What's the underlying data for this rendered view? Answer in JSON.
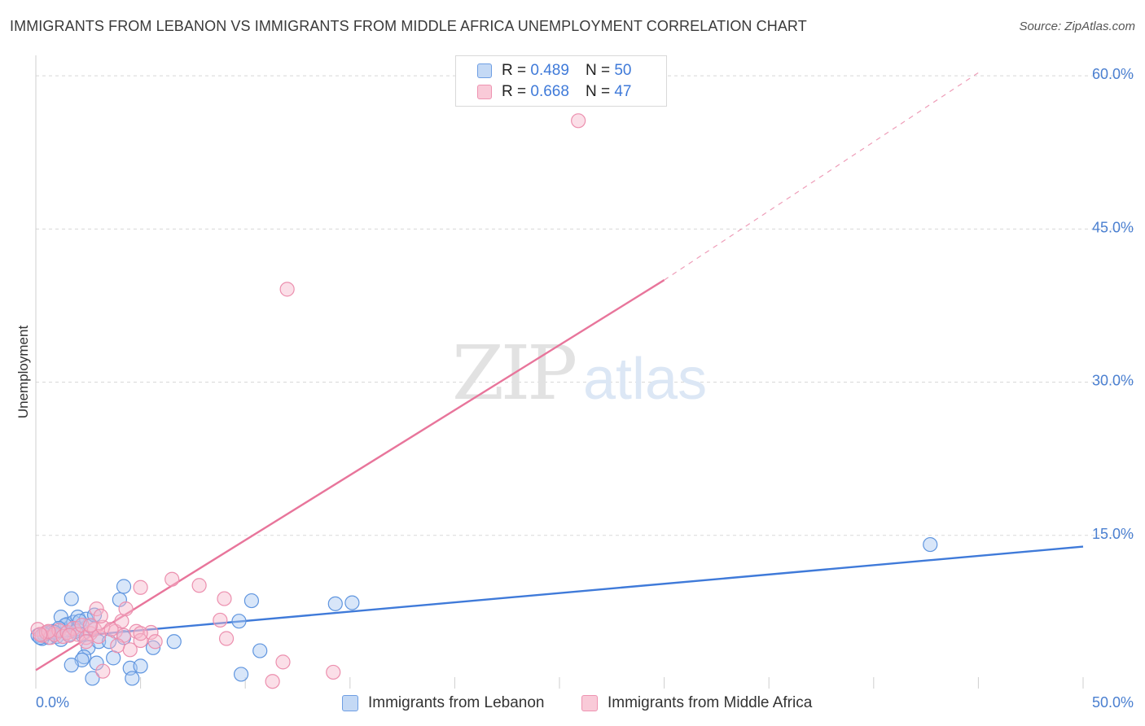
{
  "title": "IMMIGRANTS FROM LEBANON VS IMMIGRANTS FROM MIDDLE AFRICA UNEMPLOYMENT CORRELATION CHART",
  "source": "Source: ZipAtlas.com",
  "watermark": {
    "zip": "ZIP",
    "atlas": "atlas"
  },
  "legend": {
    "r_label": "R =",
    "n_label": "N =",
    "series": [
      {
        "r": "0.489",
        "n": "50"
      },
      {
        "r": "0.668",
        "n": "47"
      }
    ]
  },
  "colors": {
    "blue": "#3f7ad9",
    "blue_fill": "#a9c8f1",
    "pink": "#e8759b",
    "pink_fill": "#f7b9cc",
    "grid": "#d8d8d8"
  },
  "chart_data": {
    "type": "scatter",
    "title": "IMMIGRANTS FROM LEBANON VS IMMIGRANTS FROM MIDDLE AFRICA UNEMPLOYMENT CORRELATION CHART",
    "xlabel": "",
    "ylabel": "Unemployment",
    "xlim": [
      0,
      50
    ],
    "ylim": [
      0,
      62
    ],
    "x_ticks": [
      "0.0%",
      "50.0%"
    ],
    "y_ticks": [
      {
        "value": 15,
        "label": "15.0%"
      },
      {
        "value": 30,
        "label": "30.0%"
      },
      {
        "value": 45,
        "label": "45.0%"
      },
      {
        "value": 60,
        "label": "60.0%"
      }
    ],
    "series": [
      {
        "name": "Immigrants from Lebanon",
        "color": "#3f7ad9",
        "r": 0.489,
        "n": 50,
        "trend": {
          "x0": 0,
          "y0": 4.8,
          "x1": 50,
          "y1": 13.9
        },
        "points": [
          [
            0.1,
            5.2
          ],
          [
            0.3,
            4.9
          ],
          [
            0.5,
            5.4
          ],
          [
            0.6,
            5.0
          ],
          [
            0.8,
            5.6
          ],
          [
            1.0,
            5.1
          ],
          [
            1.2,
            4.8
          ],
          [
            1.3,
            5.7
          ],
          [
            1.5,
            6.3
          ],
          [
            1.6,
            5.3
          ],
          [
            1.8,
            6.5
          ],
          [
            2.0,
            7.0
          ],
          [
            2.0,
            5.9
          ],
          [
            2.2,
            5.3
          ],
          [
            2.4,
            6.8
          ],
          [
            2.6,
            6.1
          ],
          [
            1.2,
            7.0
          ],
          [
            1.4,
            6.2
          ],
          [
            1.7,
            8.8
          ],
          [
            1.1,
            5.9
          ],
          [
            0.9,
            5.5
          ],
          [
            0.4,
            5.3
          ],
          [
            1.9,
            5.6
          ],
          [
            2.1,
            6.6
          ],
          [
            2.5,
            4.0
          ],
          [
            2.3,
            3.1
          ],
          [
            2.2,
            2.8
          ],
          [
            1.7,
            2.3
          ],
          [
            2.9,
            2.5
          ],
          [
            4.2,
            5.0
          ],
          [
            3.0,
            4.6
          ],
          [
            3.7,
            3.0
          ],
          [
            4.0,
            8.7
          ],
          [
            4.2,
            10.0
          ],
          [
            4.5,
            2.0
          ],
          [
            4.6,
            1.0
          ],
          [
            5.0,
            2.2
          ],
          [
            5.6,
            4.0
          ],
          [
            6.6,
            4.6
          ],
          [
            2.8,
            7.2
          ],
          [
            3.5,
            4.6
          ],
          [
            9.7,
            6.6
          ],
          [
            10.3,
            8.6
          ],
          [
            10.7,
            3.7
          ],
          [
            9.8,
            1.4
          ],
          [
            14.3,
            8.3
          ],
          [
            15.1,
            8.4
          ],
          [
            42.7,
            14.1
          ],
          [
            0.2,
            5.0
          ],
          [
            2.7,
            1.0
          ]
        ]
      },
      {
        "name": "Immigrants from Middle Africa",
        "color": "#e8759b",
        "r": 0.668,
        "n": 47,
        "trend": {
          "x0": 0,
          "y0": 1.8,
          "x1": 30,
          "y1": 40.0,
          "dash_x1": 45,
          "dash_y1": 60.3
        },
        "points": [
          [
            0.1,
            5.8
          ],
          [
            0.3,
            5.2
          ],
          [
            0.5,
            5.5
          ],
          [
            0.7,
            5.0
          ],
          [
            0.9,
            5.3
          ],
          [
            1.1,
            5.7
          ],
          [
            1.3,
            5.1
          ],
          [
            1.5,
            5.5
          ],
          [
            1.8,
            5.9
          ],
          [
            2.0,
            5.3
          ],
          [
            2.2,
            6.2
          ],
          [
            2.4,
            5.0
          ],
          [
            2.6,
            5.4
          ],
          [
            2.8,
            5.8
          ],
          [
            3.0,
            5.1
          ],
          [
            3.2,
            6.0
          ],
          [
            2.6,
            6.2
          ],
          [
            3.8,
            5.6
          ],
          [
            4.2,
            5.2
          ],
          [
            4.8,
            5.6
          ],
          [
            5.5,
            5.5
          ],
          [
            1.6,
            5.2
          ],
          [
            0.6,
            5.6
          ],
          [
            2.9,
            7.8
          ],
          [
            3.1,
            7.1
          ],
          [
            3.6,
            5.8
          ],
          [
            4.1,
            6.6
          ],
          [
            4.5,
            3.8
          ],
          [
            5.0,
            4.7
          ],
          [
            5.0,
            5.4
          ],
          [
            3.9,
            4.2
          ],
          [
            4.3,
            7.8
          ],
          [
            5.0,
            9.9
          ],
          [
            5.7,
            4.6
          ],
          [
            6.5,
            10.7
          ],
          [
            7.8,
            10.1
          ],
          [
            8.8,
            6.7
          ],
          [
            9.0,
            8.8
          ],
          [
            9.1,
            4.9
          ],
          [
            11.3,
            0.7
          ],
          [
            11.8,
            2.6
          ],
          [
            14.2,
            1.6
          ],
          [
            3.2,
            1.7
          ],
          [
            2.4,
            4.6
          ],
          [
            12.0,
            39.1
          ],
          [
            25.9,
            55.6
          ],
          [
            0.2,
            5.3
          ]
        ]
      }
    ]
  }
}
